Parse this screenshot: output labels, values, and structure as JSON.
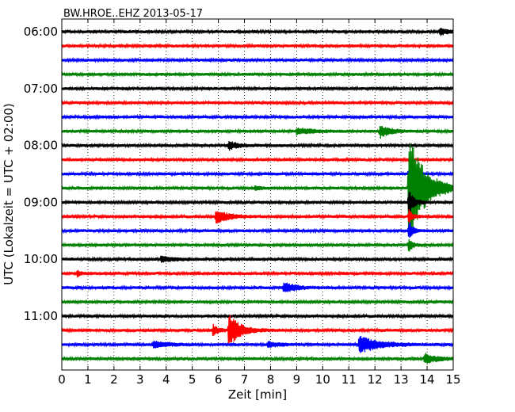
{
  "chart_data": {
    "type": "line",
    "title": "BW.HROE..EHZ 2013-05-17",
    "xlabel": "Zeit  [min]",
    "ylabel": "UTC (Lokalzeit = UTC + 02:00)",
    "xlim": [
      0,
      15
    ],
    "x_ticks": [
      0,
      1,
      2,
      3,
      4,
      5,
      6,
      7,
      8,
      9,
      10,
      11,
      12,
      13,
      14,
      15
    ],
    "y_tick_labels": [
      "06:00",
      "07:00",
      "08:00",
      "09:00",
      "10:00",
      "11:00"
    ],
    "y_tick_times_utc": [
      "06:00",
      "07:00",
      "08:00",
      "09:00",
      "10:00",
      "11:00"
    ],
    "trace_interval_min": 15,
    "trace_colors": [
      "#000000",
      "#ff0000",
      "#0000ff",
      "#008000"
    ],
    "grid": "vertical dotted",
    "traces": [
      {
        "start": "06:00",
        "color": "#000000",
        "events": [
          {
            "t": 14.5,
            "amp": 0.3,
            "dur": 0.5
          }
        ]
      },
      {
        "start": "06:15",
        "color": "#ff0000",
        "events": []
      },
      {
        "start": "06:30",
        "color": "#0000ff",
        "events": []
      },
      {
        "start": "06:45",
        "color": "#008000",
        "events": []
      },
      {
        "start": "07:00",
        "color": "#000000",
        "events": []
      },
      {
        "start": "07:15",
        "color": "#ff0000",
        "events": []
      },
      {
        "start": "07:30",
        "color": "#0000ff",
        "events": []
      },
      {
        "start": "07:45",
        "color": "#008000",
        "events": [
          {
            "t": 9.0,
            "amp": 0.22,
            "dur": 1.3
          },
          {
            "t": 12.2,
            "amp": 0.45,
            "dur": 0.8
          }
        ]
      },
      {
        "start": "08:00",
        "color": "#000000",
        "events": [
          {
            "t": 6.4,
            "amp": 0.28,
            "dur": 0.8
          }
        ]
      },
      {
        "start": "08:15",
        "color": "#ff0000",
        "events": []
      },
      {
        "start": "08:30",
        "color": "#0000ff",
        "events": [
          {
            "t": 13.3,
            "amp": 0.55,
            "dur": 0.2
          }
        ]
      },
      {
        "start": "08:45",
        "color": "#008000",
        "events": [
          {
            "t": 13.3,
            "amp": 3.8,
            "dur": 1.3
          },
          {
            "t": 7.4,
            "amp": 0.18,
            "dur": 0.4
          }
        ]
      },
      {
        "start": "09:00",
        "color": "#000000",
        "events": [
          {
            "t": 13.3,
            "amp": 0.9,
            "dur": 0.4
          }
        ]
      },
      {
        "start": "09:15",
        "color": "#ff0000",
        "events": [
          {
            "t": 5.9,
            "amp": 0.5,
            "dur": 1.0
          },
          {
            "t": 13.3,
            "amp": 0.5,
            "dur": 0.3
          }
        ]
      },
      {
        "start": "09:30",
        "color": "#0000ff",
        "events": [
          {
            "t": 13.3,
            "amp": 0.8,
            "dur": 0.3
          }
        ]
      },
      {
        "start": "09:45",
        "color": "#008000",
        "events": [
          {
            "t": 13.3,
            "amp": 0.45,
            "dur": 0.3
          }
        ]
      },
      {
        "start": "10:00",
        "color": "#000000",
        "events": [
          {
            "t": 3.8,
            "amp": 0.18,
            "dur": 1.2
          }
        ]
      },
      {
        "start": "10:15",
        "color": "#ff0000",
        "events": [
          {
            "t": 0.6,
            "amp": 0.2,
            "dur": 0.3
          }
        ]
      },
      {
        "start": "10:30",
        "color": "#0000ff",
        "events": [
          {
            "t": 8.5,
            "amp": 0.35,
            "dur": 1.0
          }
        ]
      },
      {
        "start": "10:45",
        "color": "#008000",
        "events": []
      },
      {
        "start": "11:00",
        "color": "#000000",
        "events": []
      },
      {
        "start": "11:15",
        "color": "#ff0000",
        "events": [
          {
            "t": 5.8,
            "amp": 0.4,
            "dur": 0.4
          },
          {
            "t": 6.4,
            "amp": 1.2,
            "dur": 0.9
          }
        ]
      },
      {
        "start": "11:30",
        "color": "#0000ff",
        "events": [
          {
            "t": 3.5,
            "amp": 0.2,
            "dur": 1.3
          },
          {
            "t": 7.9,
            "amp": 0.22,
            "dur": 0.8
          },
          {
            "t": 11.4,
            "amp": 0.6,
            "dur": 1.6
          }
        ]
      },
      {
        "start": "11:45",
        "color": "#008000",
        "events": [
          {
            "t": 13.9,
            "amp": 0.35,
            "dur": 1.0
          }
        ]
      }
    ]
  }
}
